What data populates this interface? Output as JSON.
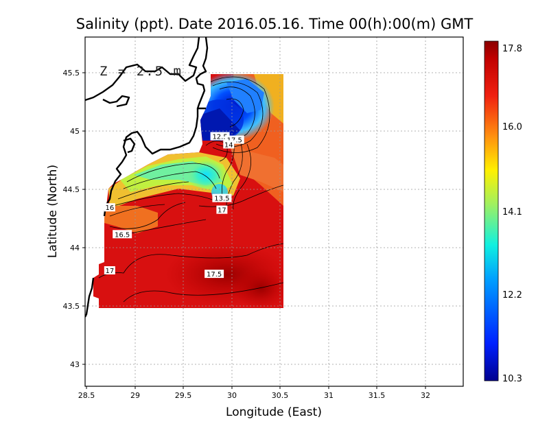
{
  "title": "Salinity (ppt). Date 2016.05.16. Time 00(h):00(m) GMT",
  "depth_label": "Z = 2.5 m",
  "xlabel": "Longitude (East)",
  "ylabel": "Latitude (North)",
  "x_ticks": [
    "28.5",
    "29",
    "29.5",
    "30",
    "30.5",
    "31",
    "31.5",
    "32"
  ],
  "y_ticks": [
    "43",
    "43.5",
    "44",
    "44.5",
    "45",
    "45.5"
  ],
  "colorbar": {
    "labels": [
      "17.8",
      "16.0",
      "14.1",
      "12.2",
      "10.3"
    ],
    "min": 10.3,
    "max": 17.8
  },
  "chart_data": {
    "type": "heatmap",
    "variable": "Salinity (ppt)",
    "xlim": [
      28.5,
      32.45
    ],
    "ylim": [
      42.8,
      45.8
    ],
    "grid": true,
    "value_range": [
      10.3,
      17.8
    ],
    "contour_labels": [
      {
        "text": "12.5",
        "lon": 29.88,
        "lat": 44.95
      },
      {
        "text": "17.5",
        "lon": 30.03,
        "lat": 44.92
      },
      {
        "text": "14",
        "lon": 29.97,
        "lat": 44.88
      },
      {
        "text": "13.5",
        "lon": 29.9,
        "lat": 44.42
      },
      {
        "text": "17",
        "lon": 29.9,
        "lat": 44.32
      },
      {
        "text": "16",
        "lon": 28.74,
        "lat": 44.34
      },
      {
        "text": "16.5",
        "lon": 28.87,
        "lat": 44.11
      },
      {
        "text": "17",
        "lon": 28.74,
        "lat": 43.8
      },
      {
        "text": "17.5",
        "lon": 29.82,
        "lat": 43.77
      }
    ]
  }
}
